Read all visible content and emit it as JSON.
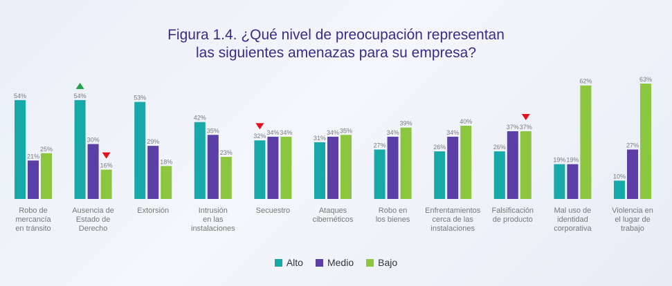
{
  "title_line1": "Figura 1.4. ¿Qué nivel de preocupación representan",
  "title_line2": "las siguientes amenazas para su empresa?",
  "colors": {
    "alto": "#16a9a8",
    "medio": "#5b3ea6",
    "bajo": "#8cc63f",
    "up": "#1ea14a",
    "down": "#e3101d"
  },
  "chart_data": {
    "type": "bar",
    "categories": [
      [
        "Robo de",
        "mercancía",
        "en tránsito"
      ],
      [
        "Ausencia de",
        "Estado de",
        "Derecho"
      ],
      [
        "Extorsión"
      ],
      [
        "Intrusión",
        "en las",
        "instalaciones"
      ],
      [
        "Secuestro"
      ],
      [
        "Ataques",
        "cibernéticos"
      ],
      [
        "Robo en",
        "los bienes"
      ],
      [
        "Enfrentamientos",
        "cerca de las",
        "instalaciones"
      ],
      [
        "Falsificación",
        "de producto"
      ],
      [
        "Mal uso de",
        "identidad",
        "corporativa"
      ],
      [
        "Violencia en",
        "el lugar de",
        "trabajo"
      ]
    ],
    "series": [
      {
        "name": "Alto",
        "values": [
          54,
          54,
          53,
          42,
          32,
          31,
          27,
          26,
          26,
          19,
          10
        ]
      },
      {
        "name": "Medio",
        "values": [
          21,
          30,
          29,
          35,
          34,
          34,
          34,
          34,
          37,
          19,
          27
        ]
      },
      {
        "name": "Bajo",
        "values": [
          25,
          16,
          18,
          23,
          34,
          35,
          39,
          40,
          37,
          62,
          63
        ]
      }
    ],
    "value_suffix": "%",
    "ylim": [
      0,
      70
    ],
    "markers": [
      {
        "category": 1,
        "series": 0,
        "direction": "up"
      },
      {
        "category": 1,
        "series": 2,
        "direction": "down"
      },
      {
        "category": 4,
        "series": 0,
        "direction": "down"
      },
      {
        "category": 8,
        "series": 2,
        "direction": "down"
      }
    ],
    "legend_position": "bottom-center",
    "grid": false
  }
}
